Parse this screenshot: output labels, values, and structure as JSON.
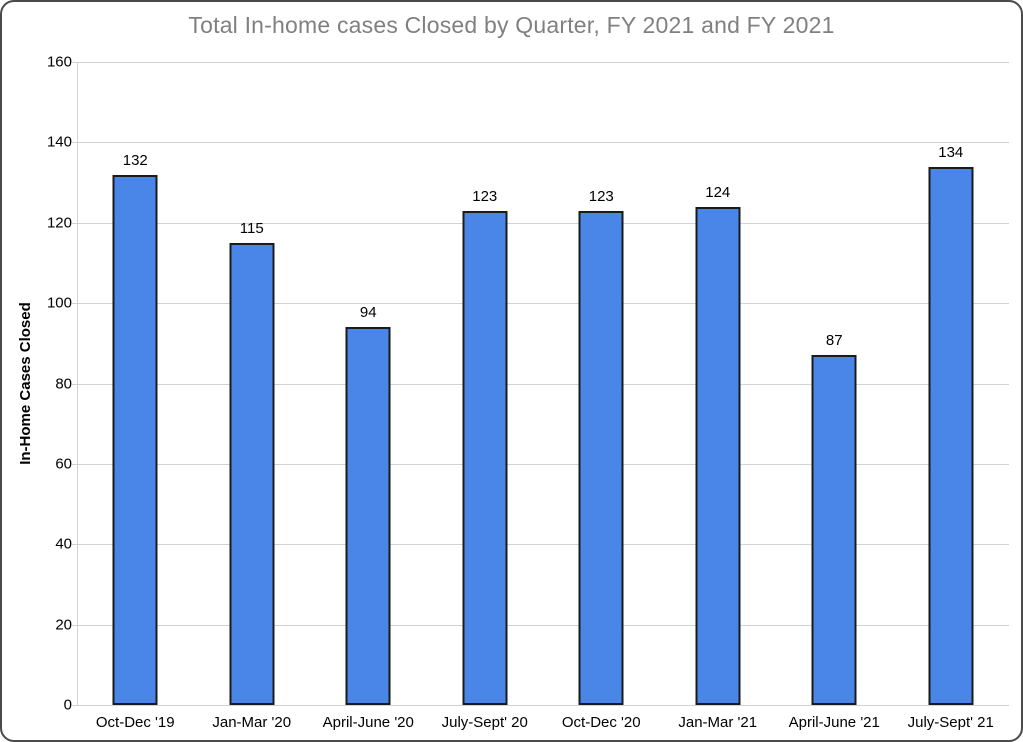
{
  "frame": {
    "background": "#ffffff",
    "border_color": "#4a4a4a"
  },
  "chart_data": {
    "type": "bar",
    "title": "Total In-home cases Closed by Quarter, FY 2021 and FY 2021",
    "categories": [
      "Oct-Dec '19",
      "Jan-Mar '20",
      "April-June '20",
      "July-Sept' 20",
      "Oct-Dec '20",
      "Jan-Mar '21",
      "April-June '21",
      "July-Sept' 21"
    ],
    "values": [
      132,
      115,
      94,
      123,
      123,
      124,
      87,
      134
    ],
    "xlabel": "",
    "ylabel": "In-Home Cases Closed",
    "ylim": [
      0,
      160
    ],
    "yticks": [
      0,
      20,
      40,
      60,
      80,
      100,
      120,
      140,
      160
    ],
    "grid": "horizontal",
    "legend": "none",
    "bar_fill_color": "#4A86E8",
    "bar_border_color": "#1a1a1a",
    "title_color": "#808080",
    "gridline_color": "#d2d2d2",
    "tick_label_color": "#000000",
    "value_labels_shown": true
  }
}
